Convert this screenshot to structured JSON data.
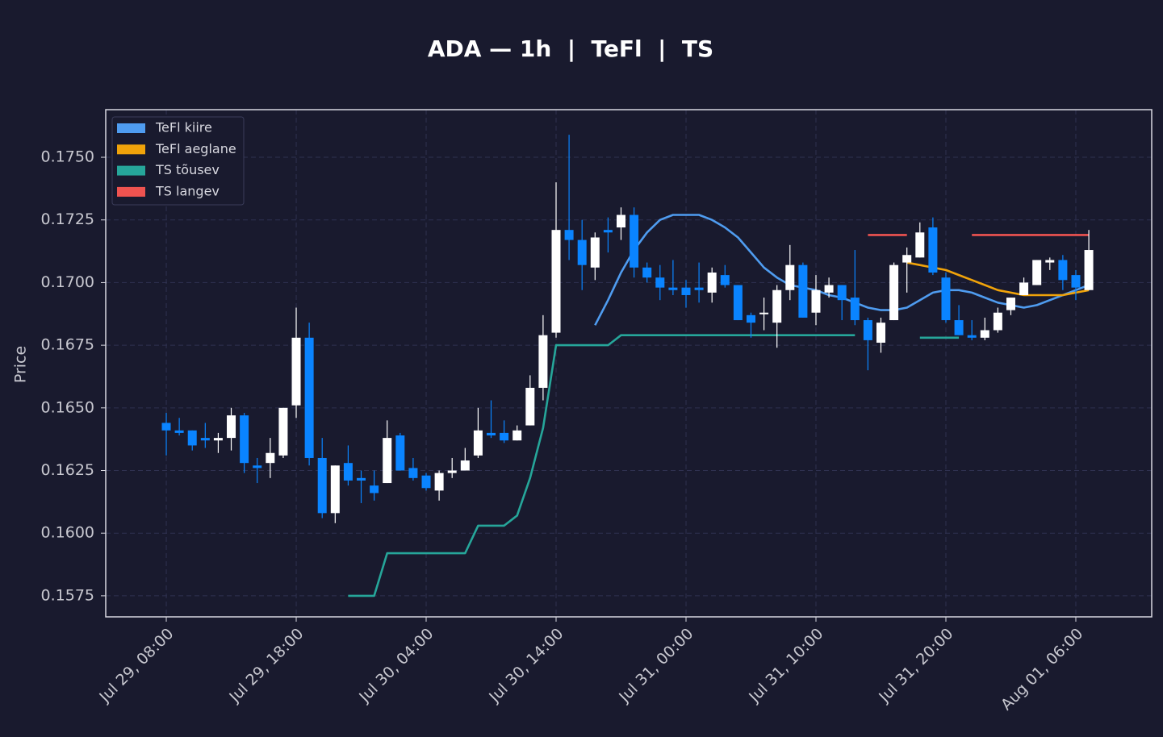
{
  "chart_data": {
    "type": "candlestick",
    "title": "ADA — 1h  |  TeFl  |  TS",
    "ylabel": "Price",
    "up_color": "#ffffff",
    "down_color": "#0a84ff",
    "grid": true,
    "legend": "upper left",
    "xlim": [
      -4.66,
      75.84
    ],
    "xticks": [
      {
        "value": 0,
        "label": "Jul 29, 08:00"
      },
      {
        "value": 10,
        "label": "Jul 29, 18:00"
      },
      {
        "value": 20,
        "label": "Jul 30, 04:00"
      },
      {
        "value": 30,
        "label": "Jul 30, 14:00"
      },
      {
        "value": 40,
        "label": "Jul 31, 00:00"
      },
      {
        "value": 50,
        "label": "Jul 31, 10:00"
      },
      {
        "value": 60,
        "label": "Jul 31, 20:00"
      },
      {
        "value": 70,
        "label": "Aug 01, 06:00"
      }
    ],
    "ylim": [
      0.15666,
      0.1769
    ],
    "yticks": [
      0.1575,
      {
        "value": 0.16,
        "label": "0.1600"
      },
      0.1625,
      {
        "value": 0.165,
        "label": "0.1650"
      },
      0.1675,
      {
        "value": 0.17,
        "label": "0.1700"
      },
      0.1725,
      {
        "value": 0.175,
        "label": "0.1750"
      }
    ],
    "open": [
      0.1644,
      0.1641,
      0.1641,
      0.1638,
      0.1637,
      0.1638,
      0.1647,
      0.1627,
      0.1628,
      0.1631,
      0.1651,
      0.1678,
      0.163,
      0.1608,
      0.1628,
      0.1622,
      0.1619,
      0.162,
      0.1639,
      0.1626,
      0.1623,
      0.1617,
      0.1624,
      0.1625,
      0.1631,
      0.164,
      0.164,
      0.1637,
      0.1643,
      0.1658,
      0.168,
      0.1721,
      0.1717,
      0.1706,
      0.1721,
      0.1722,
      0.1727,
      0.1706,
      0.1702,
      0.1698,
      0.1698,
      0.1698,
      0.1696,
      0.1703,
      0.1699,
      0.1687,
      0.1688,
      0.1684,
      0.1697,
      0.1707,
      0.1688,
      0.1696,
      0.1699,
      0.1694,
      0.1685,
      0.1676,
      0.1685,
      0.1708,
      0.171,
      0.1722,
      0.1702,
      0.1685,
      0.1679,
      0.1678,
      0.1681,
      0.1689,
      0.1695,
      0.1699,
      0.1708,
      0.1709,
      0.1703,
      0.1697
    ],
    "high": [
      0.1648,
      0.1646,
      0.1641,
      0.1644,
      0.164,
      0.165,
      0.1648,
      0.163,
      0.1638,
      0.165,
      0.169,
      0.1684,
      0.1638,
      0.1627,
      0.1635,
      0.1625,
      0.1625,
      0.1645,
      0.164,
      0.163,
      0.1624,
      0.1625,
      0.163,
      0.1634,
      0.165,
      0.1653,
      0.1645,
      0.1643,
      0.1663,
      0.1687,
      0.174,
      0.1759,
      0.1725,
      0.172,
      0.1726,
      0.173,
      0.173,
      0.1708,
      0.1707,
      0.1709,
      0.1701,
      0.1708,
      0.1706,
      0.1707,
      0.1699,
      0.1688,
      0.1694,
      0.1699,
      0.1715,
      0.1708,
      0.1703,
      0.1702,
      0.1699,
      0.1713,
      0.1686,
      0.1686,
      0.1708,
      0.1714,
      0.1724,
      0.1726,
      0.1704,
      0.1691,
      0.1685,
      0.1686,
      0.169,
      0.1694,
      0.1702,
      0.1709,
      0.171,
      0.1711,
      0.1705,
      0.1721
    ],
    "low": [
      0.1631,
      0.1639,
      0.1633,
      0.1634,
      0.1632,
      0.1633,
      0.1624,
      0.162,
      0.1622,
      0.163,
      0.1646,
      0.1627,
      0.1606,
      0.1604,
      0.1619,
      0.1612,
      0.1613,
      0.162,
      0.1625,
      0.1621,
      0.1617,
      0.1613,
      0.1622,
      0.1625,
      0.163,
      0.1638,
      0.1636,
      0.1637,
      0.1643,
      0.1653,
      0.1678,
      0.1709,
      0.1697,
      0.1701,
      0.1712,
      0.1717,
      0.1702,
      0.17,
      0.1693,
      0.1695,
      0.169,
      0.1692,
      0.1692,
      0.1698,
      0.1685,
      0.1678,
      0.1681,
      0.1674,
      0.1693,
      0.1686,
      0.1683,
      0.1694,
      0.1685,
      0.1683,
      0.1665,
      0.1672,
      0.1685,
      0.1696,
      0.171,
      0.1703,
      0.1684,
      0.1679,
      0.1677,
      0.1677,
      0.168,
      0.1687,
      0.1695,
      0.1699,
      0.1705,
      0.1697,
      0.1693,
      0.1697
    ],
    "close": [
      0.1641,
      0.164,
      0.1635,
      0.1637,
      0.1638,
      0.1647,
      0.1628,
      0.1626,
      0.1632,
      0.165,
      0.1678,
      0.163,
      0.1608,
      0.1627,
      0.1621,
      0.1621,
      0.1616,
      0.1638,
      0.1625,
      0.1622,
      0.1618,
      0.1624,
      0.1625,
      0.1629,
      0.1641,
      0.1639,
      0.1637,
      0.1641,
      0.1658,
      0.1679,
      0.1721,
      0.1717,
      0.1707,
      0.1718,
      0.172,
      0.1727,
      0.1706,
      0.1702,
      0.1698,
      0.1697,
      0.1695,
      0.1697,
      0.1704,
      0.1699,
      0.1685,
      0.1684,
      0.1688,
      0.1697,
      0.1707,
      0.1686,
      0.1697,
      0.1699,
      0.1693,
      0.1685,
      0.1677,
      0.1684,
      0.1707,
      0.1711,
      0.172,
      0.1704,
      0.1685,
      0.1679,
      0.1678,
      0.1681,
      0.1688,
      0.1694,
      0.17,
      0.1709,
      0.1709,
      0.1701,
      0.1698,
      0.1713
    ],
    "series": [
      {
        "name": "TeFl kiire",
        "color": "#4f9cf0",
        "values": [
          null,
          null,
          null,
          null,
          null,
          null,
          null,
          null,
          null,
          null,
          null,
          null,
          null,
          null,
          null,
          null,
          null,
          null,
          null,
          null,
          null,
          null,
          null,
          null,
          null,
          null,
          null,
          null,
          null,
          null,
          null,
          null,
          null,
          0.1683,
          0.1693,
          0.1704,
          0.1713,
          0.172,
          0.1725,
          0.1727,
          0.1727,
          0.1727,
          0.1725,
          0.1722,
          0.1718,
          0.1712,
          0.1706,
          0.1702,
          0.1699,
          0.1698,
          0.1697,
          0.1695,
          0.1694,
          0.1692,
          0.169,
          0.1689,
          0.1689,
          0.169,
          0.1693,
          0.1696,
          0.1697,
          0.1697,
          0.1696,
          0.1694,
          0.1692,
          0.1691,
          0.169,
          0.1691,
          0.1693,
          0.1695,
          0.1697,
          0.1699
        ]
      },
      {
        "name": "TeFl aeglane",
        "color": "#f0a30a",
        "values": [
          null,
          null,
          null,
          null,
          null,
          null,
          null,
          null,
          null,
          null,
          null,
          null,
          null,
          null,
          null,
          null,
          null,
          null,
          null,
          null,
          null,
          null,
          null,
          null,
          null,
          null,
          null,
          null,
          null,
          null,
          null,
          null,
          null,
          null,
          null,
          null,
          null,
          null,
          null,
          null,
          null,
          null,
          null,
          null,
          null,
          null,
          null,
          null,
          null,
          null,
          null,
          null,
          null,
          null,
          null,
          null,
          null,
          0.1708,
          0.1707,
          0.1706,
          0.1705,
          0.1703,
          0.1701,
          0.1699,
          0.1697,
          0.1696,
          0.1695,
          0.1695,
          0.1695,
          0.1695,
          0.1696,
          0.1697
        ]
      },
      {
        "name": "TS tõusev",
        "color": "#26a69a",
        "values": [
          null,
          null,
          null,
          null,
          null,
          null,
          null,
          null,
          null,
          null,
          null,
          null,
          null,
          null,
          0.1575,
          0.1575,
          0.1575,
          0.1592,
          0.1592,
          0.1592,
          0.1592,
          0.1592,
          0.1592,
          0.1592,
          0.1603,
          0.1603,
          0.1603,
          0.1607,
          0.1622,
          0.1642,
          0.1675,
          0.1675,
          0.1675,
          0.1675,
          0.1675,
          0.1679,
          0.1679,
          0.1679,
          0.1679,
          0.1679,
          0.1679,
          0.1679,
          0.1679,
          0.1679,
          0.1679,
          0.1679,
          0.1679,
          0.1679,
          0.1679,
          0.1679,
          0.1679,
          0.1679,
          0.1679,
          0.1679,
          null,
          null,
          null,
          null,
          0.1678,
          0.1678,
          0.1678,
          0.1678,
          null,
          null,
          null,
          null,
          null,
          null,
          null,
          null,
          null,
          null
        ]
      },
      {
        "name": "TS langev",
        "color": "#ef5350",
        "values": [
          null,
          null,
          null,
          null,
          null,
          null,
          null,
          null,
          null,
          null,
          null,
          null,
          null,
          null,
          null,
          null,
          null,
          null,
          null,
          null,
          null,
          null,
          null,
          null,
          null,
          null,
          null,
          null,
          null,
          null,
          null,
          null,
          null,
          null,
          null,
          null,
          null,
          null,
          null,
          null,
          null,
          null,
          null,
          null,
          null,
          null,
          null,
          null,
          null,
          null,
          null,
          null,
          null,
          null,
          0.1719,
          0.1719,
          0.1719,
          0.1719,
          null,
          null,
          null,
          null,
          0.1719,
          0.1719,
          0.1719,
          0.1719,
          0.1719,
          0.1719,
          0.1719,
          0.1719,
          0.1719,
          0.1719
        ]
      }
    ]
  }
}
